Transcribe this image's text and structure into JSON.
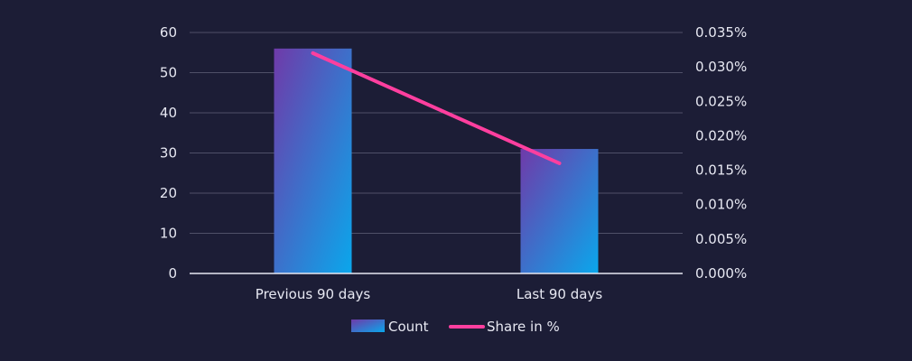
{
  "chart_data": {
    "type": "bar",
    "categories": [
      "Previous 90 days",
      "Last 90 days"
    ],
    "series": [
      {
        "name": "Count",
        "type": "bar",
        "axis": "left",
        "values": [
          56,
          31
        ],
        "gradient": [
          "#6f3aa9",
          "#0aa7ec"
        ]
      },
      {
        "name": "Share in %",
        "type": "line",
        "axis": "right",
        "values": [
          0.032,
          0.016
        ],
        "color": "#ff3f9f"
      }
    ],
    "ylim_left": [
      0,
      60
    ],
    "yticks_left": [
      0,
      10,
      20,
      30,
      40,
      50,
      60
    ],
    "ylim_right": [
      0,
      0.035
    ],
    "yticks_right": [
      "0.000%",
      "0.005%",
      "0.010%",
      "0.015%",
      "0.020%",
      "0.025%",
      "0.030%",
      "0.035%"
    ],
    "grid": true,
    "legend_position": "bottom-center",
    "grid_color": "#4f5068",
    "axis_line_color": "#e7e8f2"
  }
}
